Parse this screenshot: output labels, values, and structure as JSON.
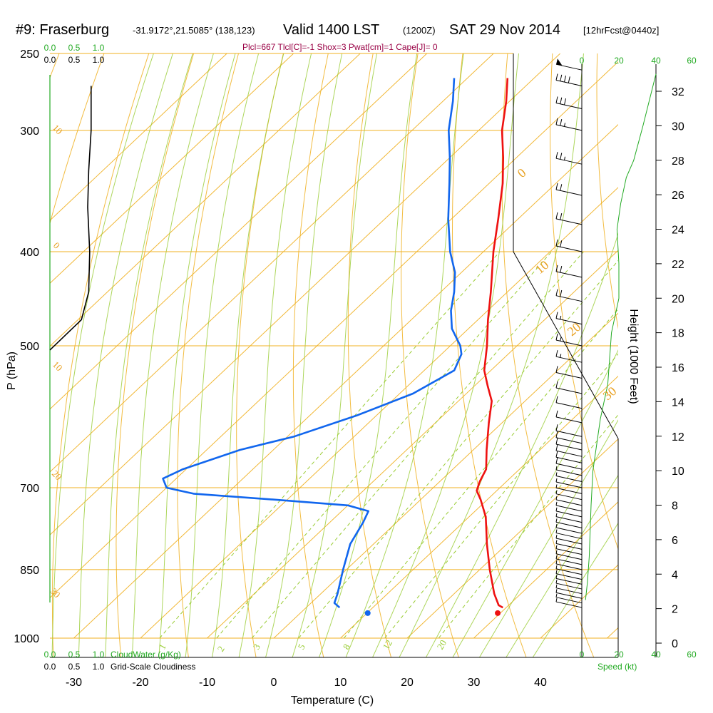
{
  "header": {
    "title_station": "#9: Fraserburg",
    "title_coords": "-31.9172°,21.5085° (138,123)",
    "title_valid": "Valid 1400 LST",
    "title_z": "(1200Z)",
    "title_date": "SAT 29 Nov 2014",
    "title_fcst": "[12hrFcst@0440z]",
    "params_line": "Plcl=667 Tlcl[C]=-1 Shox=3 Pwat[cm]=1 Cape[J]= 0"
  },
  "colors": {
    "temperature": "#ee1111",
    "dewpoint": "#1166ee",
    "isobar": "#f0b020",
    "dry_adiabat": "#f0b020",
    "moist_adiabat": "#99cc33",
    "mixing_ratio": "#99cc33",
    "cloud_water": "#22aa22",
    "speed_profile": "#22aa22"
  },
  "chart_data": {
    "type": "line",
    "diagram": "skew-T log-P sounding",
    "xlabel": "Temperature (C)",
    "ylabel": "P (hPa)",
    "right_label": "Height (1000 Feet)",
    "temperature_ticks": [
      -30,
      -20,
      -10,
      0,
      10,
      20,
      30,
      40
    ],
    "pressure_ticks": [
      250,
      300,
      400,
      500,
      700,
      850,
      1000
    ],
    "height_ticks": [
      0,
      2,
      4,
      6,
      8,
      10,
      12,
      14,
      16,
      18,
      20,
      22,
      24,
      26,
      28,
      30,
      32
    ],
    "dry_adiabat_labels": [
      "0",
      "10",
      "20",
      "30"
    ],
    "left_isotherm_labels": [
      "10",
      "0",
      "10",
      "20",
      "30"
    ],
    "mixing_ratio_labels": [
      "1",
      "2",
      "3",
      "5",
      "8",
      "12",
      "20"
    ],
    "cloud": {
      "top_ticks": [
        "0.0",
        "0.5",
        "1.0"
      ],
      "top_black_ticks": [
        "0.0",
        "0.5",
        "1.0"
      ],
      "bottom_ticks": [
        "0.0",
        "0.5",
        "1.0"
      ],
      "bottom_black_ticks": [
        "0.0",
        "0.5",
        "1.0"
      ],
      "cloud_water_label": "CloudWater (g/Kg)",
      "cloudiness_label": "Grid-Scale Cloudiness",
      "cloudiness_profile": [
        {
          "p": 270,
          "v": 0.85
        },
        {
          "p": 300,
          "v": 0.85
        },
        {
          "p": 330,
          "v": 0.8
        },
        {
          "p": 360,
          "v": 0.78
        },
        {
          "p": 400,
          "v": 0.82
        },
        {
          "p": 440,
          "v": 0.8
        },
        {
          "p": 470,
          "v": 0.65
        },
        {
          "p": 505,
          "v": 0.0
        }
      ]
    },
    "wind_speed": {
      "top_ticks": [
        "0",
        "20",
        "40",
        "60"
      ],
      "bottom_ticks": [
        "0",
        "20",
        "40",
        "60"
      ],
      "label": "Speed (kt)",
      "profile": [
        {
          "h": 2.5,
          "v": 2
        },
        {
          "h": 3.5,
          "v": 3
        },
        {
          "h": 5,
          "v": 4
        },
        {
          "h": 8,
          "v": 5
        },
        {
          "h": 10,
          "v": 6
        },
        {
          "h": 11.5,
          "v": 8
        },
        {
          "h": 13,
          "v": 10
        },
        {
          "h": 15,
          "v": 14
        },
        {
          "h": 18,
          "v": 16
        },
        {
          "h": 20,
          "v": 20
        },
        {
          "h": 22,
          "v": 20
        },
        {
          "h": 24,
          "v": 19
        },
        {
          "h": 25.5,
          "v": 21
        },
        {
          "h": 27,
          "v": 24
        },
        {
          "h": 28,
          "v": 28
        },
        {
          "h": 30,
          "v": 33
        },
        {
          "h": 33,
          "v": 40
        }
      ]
    },
    "temperature_profile": [
      {
        "p": 930,
        "t": 29.5
      },
      {
        "p": 925,
        "t": 28.5
      },
      {
        "p": 900,
        "t": 26.0
      },
      {
        "p": 850,
        "t": 21.5
      },
      {
        "p": 800,
        "t": 17.0
      },
      {
        "p": 750,
        "t": 12.5
      },
      {
        "p": 720,
        "t": 9.0
      },
      {
        "p": 705,
        "t": 7.0
      },
      {
        "p": 690,
        "t": 6.0
      },
      {
        "p": 670,
        "t": 5.0
      },
      {
        "p": 640,
        "t": 2.0
      },
      {
        "p": 600,
        "t": -2.0
      },
      {
        "p": 570,
        "t": -5.0
      },
      {
        "p": 550,
        "t": -8.0
      },
      {
        "p": 530,
        "t": -11.0
      },
      {
        "p": 500,
        "t": -14.5
      },
      {
        "p": 470,
        "t": -18.5
      },
      {
        "p": 440,
        "t": -22.5
      },
      {
        "p": 400,
        "t": -28.5
      },
      {
        "p": 370,
        "t": -33.0
      },
      {
        "p": 340,
        "t": -38.0
      },
      {
        "p": 320,
        "t": -42.0
      },
      {
        "p": 300,
        "t": -46.5
      },
      {
        "p": 280,
        "t": -50.5
      },
      {
        "p": 265,
        "t": -54.0
      }
    ],
    "dewpoint_profile": [
      {
        "p": 930,
        "t": 5.0
      },
      {
        "p": 920,
        "t": 3.5
      },
      {
        "p": 900,
        "t": 2.5
      },
      {
        "p": 850,
        "t": -0.5
      },
      {
        "p": 800,
        "t": -3.5
      },
      {
        "p": 760,
        "t": -5.0
      },
      {
        "p": 740,
        "t": -6.0
      },
      {
        "p": 730,
        "t": -10.0
      },
      {
        "p": 720,
        "t": -22.0
      },
      {
        "p": 710,
        "t": -35.0
      },
      {
        "p": 700,
        "t": -40.0
      },
      {
        "p": 685,
        "t": -42.0
      },
      {
        "p": 670,
        "t": -40.5
      },
      {
        "p": 640,
        "t": -35.0
      },
      {
        "p": 620,
        "t": -29.0
      },
      {
        "p": 590,
        "t": -23.0
      },
      {
        "p": 560,
        "t": -18.0
      },
      {
        "p": 530,
        "t": -15.5
      },
      {
        "p": 510,
        "t": -17.0
      },
      {
        "p": 500,
        "t": -18.5
      },
      {
        "p": 480,
        "t": -22.5
      },
      {
        "p": 460,
        "t": -25.5
      },
      {
        "p": 440,
        "t": -28.0
      },
      {
        "p": 420,
        "t": -31.0
      },
      {
        "p": 400,
        "t": -35.0
      },
      {
        "p": 370,
        "t": -40.5
      },
      {
        "p": 340,
        "t": -46.0
      },
      {
        "p": 320,
        "t": -50.0
      },
      {
        "p": 300,
        "t": -54.5
      },
      {
        "p": 280,
        "t": -58.5
      },
      {
        "p": 265,
        "t": -62.0
      }
    ],
    "surface_temperature": 30.5,
    "surface_dewpoint": 11.0,
    "surface_pressure": 925,
    "wind_barbs": [
      {
        "p": 930,
        "knots": 5
      },
      {
        "p": 920,
        "knots": 5
      },
      {
        "p": 910,
        "knots": 5
      },
      {
        "p": 900,
        "knots": 5
      },
      {
        "p": 890,
        "knots": 5
      },
      {
        "p": 880,
        "knots": 5
      },
      {
        "p": 870,
        "knots": 5
      },
      {
        "p": 860,
        "knots": 5
      },
      {
        "p": 850,
        "knots": 5
      },
      {
        "p": 840,
        "knots": 5
      },
      {
        "p": 830,
        "knots": 5
      },
      {
        "p": 820,
        "knots": 5
      },
      {
        "p": 810,
        "knots": 5
      },
      {
        "p": 800,
        "knots": 5
      },
      {
        "p": 790,
        "knots": 5
      },
      {
        "p": 780,
        "knots": 5
      },
      {
        "p": 770,
        "knots": 5
      },
      {
        "p": 760,
        "knots": 5
      },
      {
        "p": 750,
        "knots": 5
      },
      {
        "p": 740,
        "knots": 5
      },
      {
        "p": 730,
        "knots": 5
      },
      {
        "p": 720,
        "knots": 5
      },
      {
        "p": 710,
        "knots": 5
      },
      {
        "p": 700,
        "knots": 5
      },
      {
        "p": 690,
        "knots": 5
      },
      {
        "p": 680,
        "knots": 5
      },
      {
        "p": 670,
        "knots": 10
      },
      {
        "p": 660,
        "knots": 10
      },
      {
        "p": 650,
        "knots": 10
      },
      {
        "p": 640,
        "knots": 10
      },
      {
        "p": 630,
        "knots": 10
      },
      {
        "p": 620,
        "knots": 10
      },
      {
        "p": 600,
        "knots": 10
      },
      {
        "p": 580,
        "knots": 10
      },
      {
        "p": 560,
        "knots": 10
      },
      {
        "p": 540,
        "knots": 10
      },
      {
        "p": 520,
        "knots": 15
      },
      {
        "p": 500,
        "knots": 15
      },
      {
        "p": 475,
        "knots": 15
      },
      {
        "p": 450,
        "knots": 20
      },
      {
        "p": 425,
        "knots": 20
      },
      {
        "p": 400,
        "knots": 20
      },
      {
        "p": 375,
        "knots": 20
      },
      {
        "p": 350,
        "knots": 20
      },
      {
        "p": 325,
        "knots": 25
      },
      {
        "p": 300,
        "knots": 25
      },
      {
        "p": 285,
        "knots": 30
      },
      {
        "p": 270,
        "knots": 40
      },
      {
        "p": 260,
        "knots": 50
      }
    ]
  }
}
